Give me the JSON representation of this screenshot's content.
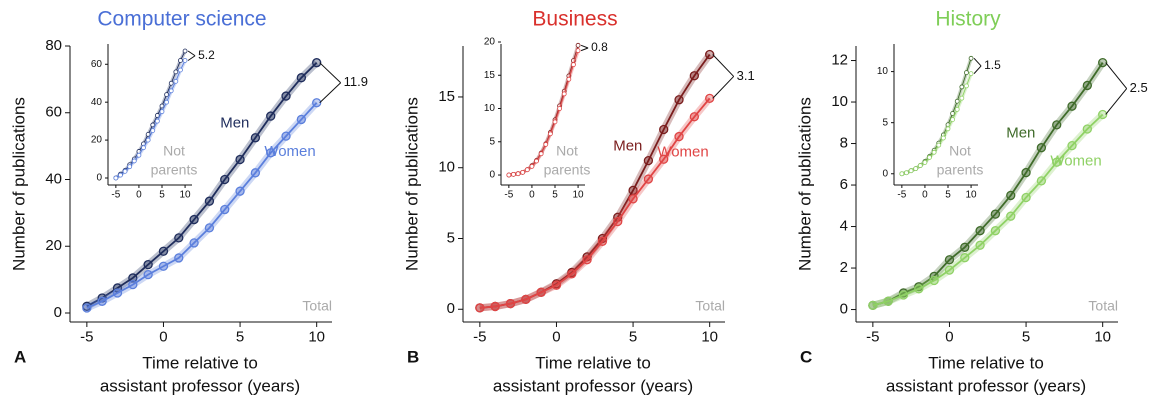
{
  "chart_data": [
    {
      "type": "line",
      "title": "Computer science",
      "title_color": "#4a6fd6",
      "panel_label": "A",
      "xlabel": [
        "Time relative to",
        "assistant professor (years)"
      ],
      "ylabel": "Number of publications",
      "xlim": [
        -6.1,
        11
      ],
      "ylim": [
        -2.7,
        80
      ],
      "xticks": [
        -5,
        0,
        5,
        10
      ],
      "yticks": [
        0,
        20,
        40,
        60,
        80
      ],
      "x": [
        -5,
        -4,
        -3,
        -2,
        -1,
        0,
        1,
        2,
        3,
        4,
        5,
        6,
        7,
        8,
        9,
        10
      ],
      "series": [
        {
          "name": "Men",
          "color": "#1f2d5c",
          "values": [
            2,
            4.5,
            7.5,
            10.5,
            14.5,
            18.5,
            22.5,
            28,
            33.5,
            40,
            46,
            52.5,
            59,
            65,
            70.5,
            75
          ]
        },
        {
          "name": "Women",
          "color": "#5b7fdc",
          "values": [
            1.5,
            3.5,
            6,
            8.5,
            11.5,
            14,
            16.5,
            21,
            25.5,
            31,
            36.5,
            42,
            48,
            53,
            58,
            63
          ]
        }
      ],
      "gap_label": "11.9",
      "corner_label": "Total",
      "inset": {
        "xlim": [
          -6.7,
          11.5
        ],
        "ylim": [
          -3.7,
          70.7
        ],
        "xticks": [
          -5,
          0,
          5,
          10
        ],
        "yticks": [
          0,
          20,
          40,
          60
        ],
        "x": [
          -5,
          -4,
          -3,
          -2,
          -1,
          0,
          1,
          2,
          3,
          4,
          5,
          6,
          7,
          8,
          9,
          10
        ],
        "series": [
          {
            "color": "#1f2d5c",
            "values": [
              0,
              2,
              4,
              7,
              10,
              14,
              18,
              23,
              28,
              33,
              38,
              44,
              50,
              56,
              62,
              67
            ]
          },
          {
            "color": "#5b7fdc",
            "values": [
              0,
              1.5,
              3.5,
              6,
              9,
              12,
              16,
              20,
              25,
              30,
              35,
              40,
              46,
              51,
              57,
              62
            ]
          }
        ],
        "gap_label": "5.2",
        "label": [
          "Not",
          "parents"
        ]
      }
    },
    {
      "type": "line",
      "title": "Business",
      "title_color": "#d9302c",
      "panel_label": "B",
      "xlabel": [
        "Time relative to",
        "assistant professor (years)"
      ],
      "ylabel": "Number of publications",
      "xlim": [
        -6.1,
        11
      ],
      "ylim": [
        -0.9,
        18.6
      ],
      "xticks": [
        -5,
        0,
        5,
        10
      ],
      "yticks": [
        0,
        5,
        10,
        15
      ],
      "x": [
        -5,
        -4,
        -3,
        -2,
        -1,
        0,
        1,
        2,
        3,
        4,
        5,
        6,
        7,
        8,
        9,
        10
      ],
      "series": [
        {
          "name": "Men",
          "color": "#7a1d1d",
          "values": [
            0.1,
            0.2,
            0.4,
            0.7,
            1.2,
            1.8,
            2.6,
            3.7,
            5.0,
            6.5,
            8.4,
            10.5,
            12.7,
            14.8,
            16.5,
            18.0
          ]
        },
        {
          "name": "Women",
          "color": "#e04545",
          "values": [
            0.1,
            0.2,
            0.4,
            0.7,
            1.2,
            1.7,
            2.5,
            3.5,
            4.8,
            6.2,
            7.8,
            9.2,
            10.6,
            12.2,
            13.6,
            14.9
          ]
        }
      ],
      "gap_label": "3.1",
      "corner_label": "Total",
      "inset": {
        "xlim": [
          -6.7,
          11.5
        ],
        "ylim": [
          -1.5,
          19.7
        ],
        "xticks": [
          -5,
          0,
          5,
          10
        ],
        "yticks": [
          0,
          5,
          10,
          15,
          20
        ],
        "x": [
          -5,
          -4,
          -3,
          -2,
          -1,
          0,
          1,
          2,
          3,
          4,
          5,
          6,
          7,
          8,
          9,
          10
        ],
        "series": [
          {
            "color": "#7a1d1d",
            "values": [
              0,
              0.1,
              0.2,
              0.4,
              0.8,
              1.4,
              2.2,
              3.3,
              4.7,
              6.4,
              8.3,
              10.4,
              12.6,
              14.9,
              17.2,
              19.5
            ]
          },
          {
            "color": "#e04545",
            "values": [
              0,
              0.1,
              0.2,
              0.4,
              0.8,
              1.3,
              2.1,
              3.2,
              4.6,
              6.2,
              8.0,
              10.0,
              12.2,
              14.4,
              16.6,
              18.7
            ]
          }
        ],
        "gap_label": "0.8",
        "label": [
          "Not",
          "parents"
        ]
      }
    },
    {
      "type": "line",
      "title": "History",
      "title_color": "#7fce58",
      "panel_label": "C",
      "xlabel": [
        "Time relative to",
        "assistant professor (years)"
      ],
      "ylabel": "Number of publications",
      "xlim": [
        -6.1,
        11
      ],
      "ylim": [
        -0.6,
        12.7
      ],
      "xticks": [
        -5,
        0,
        5,
        10
      ],
      "yticks": [
        0,
        2,
        4,
        6,
        8,
        10,
        12
      ],
      "x": [
        -5,
        -4,
        -3,
        -2,
        -1,
        0,
        1,
        2,
        3,
        4,
        5,
        6,
        7,
        8,
        9,
        10
      ],
      "series": [
        {
          "name": "Men",
          "color": "#3f6b2a",
          "values": [
            0.2,
            0.4,
            0.8,
            1.1,
            1.6,
            2.4,
            3.0,
            3.8,
            4.6,
            5.5,
            6.6,
            7.8,
            8.9,
            9.8,
            10.8,
            11.9
          ]
        },
        {
          "name": "Women",
          "color": "#8fd165",
          "values": [
            0.2,
            0.4,
            0.7,
            1.0,
            1.4,
            1.9,
            2.5,
            3.1,
            3.8,
            4.5,
            5.4,
            6.2,
            7.1,
            7.9,
            8.7,
            9.4
          ]
        }
      ],
      "gap_label": "2.5",
      "corner_label": "Total",
      "inset": {
        "xlim": [
          -6.7,
          11.5
        ],
        "ylim": [
          -1.1,
          12.7
        ],
        "xticks": [
          -5,
          0,
          5,
          10
        ],
        "yticks": [
          0,
          5,
          10
        ],
        "x": [
          -5,
          -4,
          -3,
          -2,
          -1,
          0,
          1,
          2,
          3,
          4,
          5,
          6,
          7,
          8,
          9,
          10
        ],
        "series": [
          {
            "color": "#3f6b2a",
            "values": [
              0,
              0.1,
              0.3,
              0.5,
              0.8,
              1.2,
              1.7,
              2.3,
              3.0,
              3.8,
              4.8,
              5.9,
              7.1,
              8.5,
              9.9,
              11.3
            ]
          },
          {
            "color": "#8fd165",
            "values": [
              0,
              0.1,
              0.3,
              0.5,
              0.8,
              1.1,
              1.6,
              2.1,
              2.8,
              3.5,
              4.4,
              5.3,
              6.3,
              7.4,
              8.6,
              9.8
            ]
          }
        ],
        "gap_label": "1.5",
        "label": [
          "Not",
          "parents"
        ]
      }
    }
  ]
}
